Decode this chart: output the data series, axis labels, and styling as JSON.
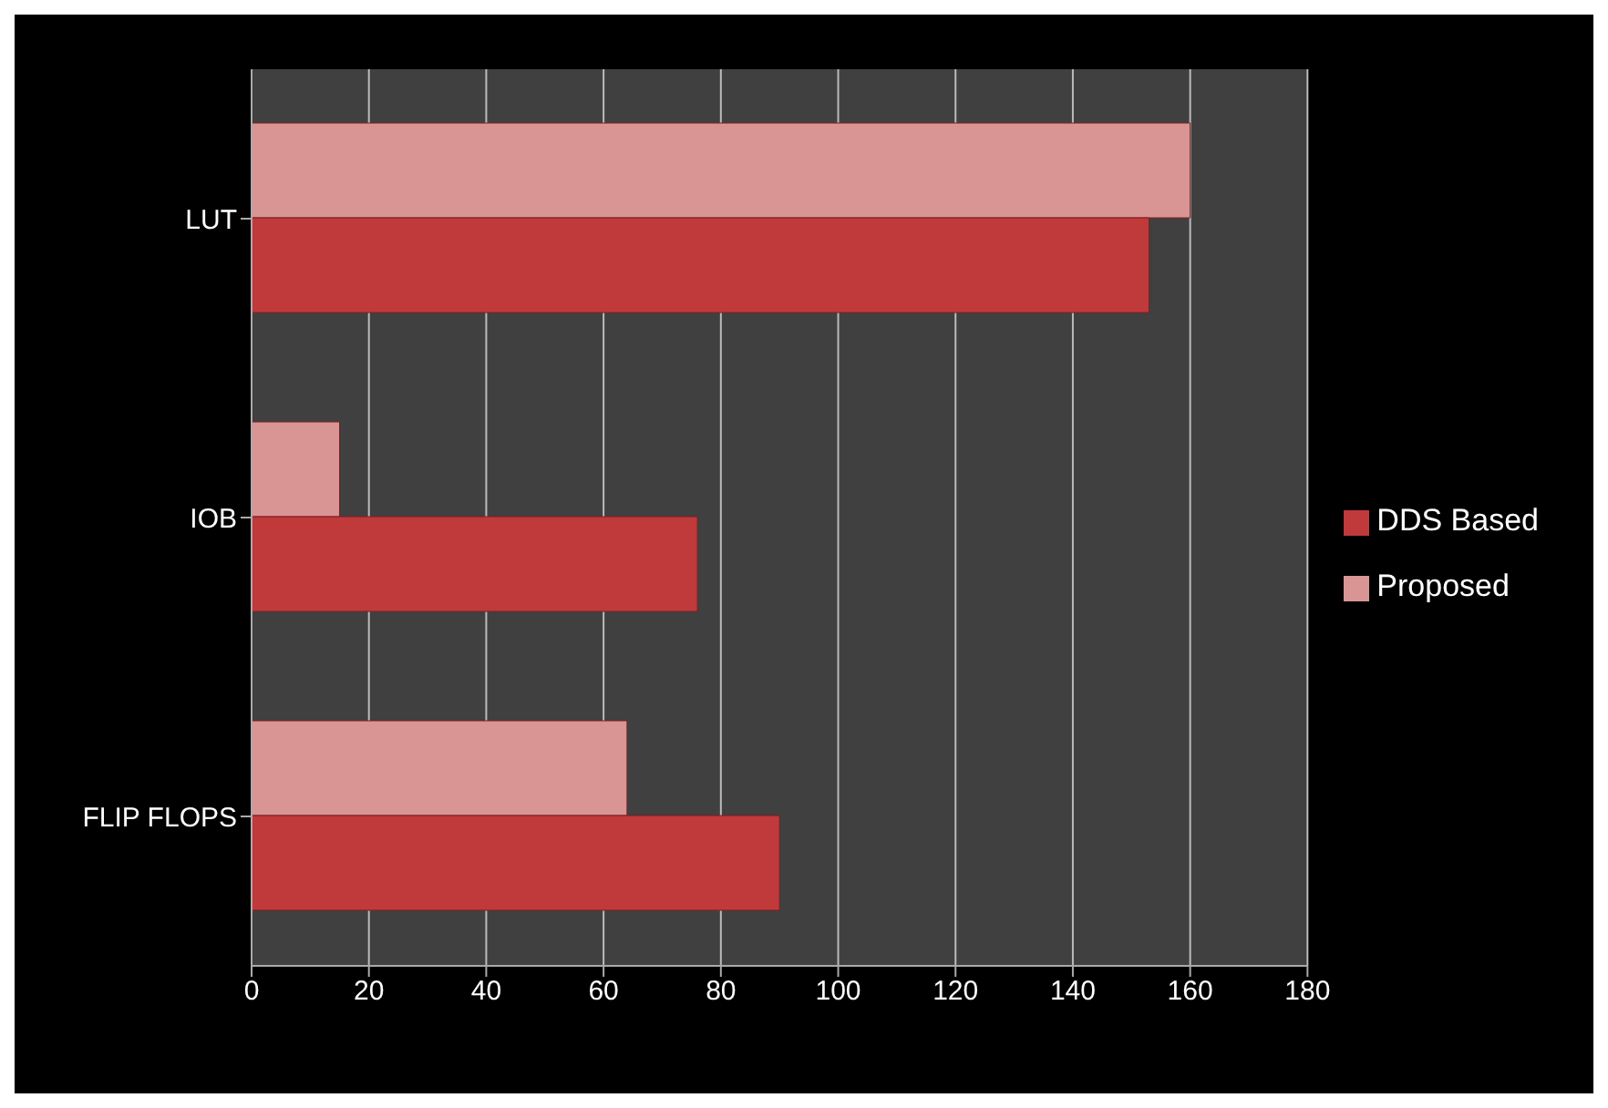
{
  "chart_data": {
    "type": "bar",
    "orientation": "horizontal",
    "categories": [
      "LUT",
      "IOB",
      "FLIP FLOPS"
    ],
    "series": [
      {
        "name": "Proposed",
        "color": "#d99594",
        "values": [
          160,
          15,
          64
        ]
      },
      {
        "name": "DDS Based",
        "color": "#c0393b",
        "values": [
          153,
          76,
          90
        ]
      }
    ],
    "xlim": [
      0,
      180
    ],
    "xticks": [
      0,
      20,
      40,
      60,
      80,
      100,
      120,
      140,
      160,
      180
    ],
    "grid": "x",
    "legend": "right"
  }
}
